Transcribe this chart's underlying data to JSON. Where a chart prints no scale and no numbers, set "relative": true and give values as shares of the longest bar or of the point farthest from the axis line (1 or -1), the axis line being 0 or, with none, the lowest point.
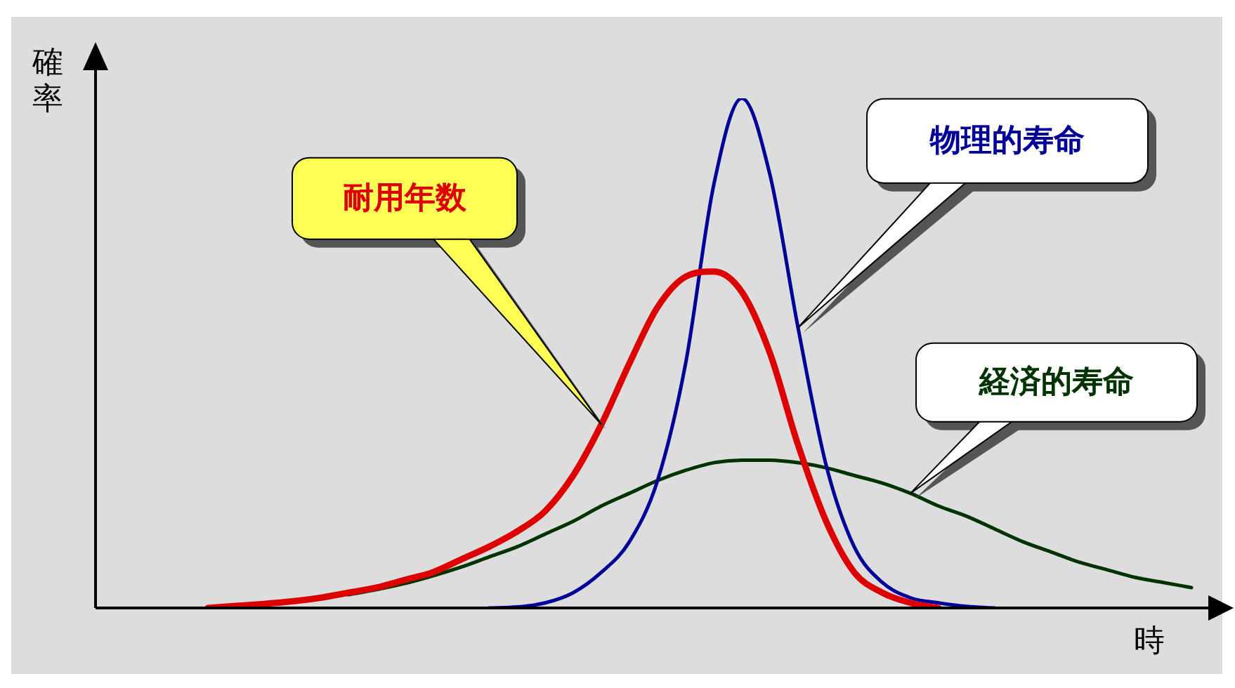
{
  "chart_data": {
    "type": "line",
    "relative": true,
    "xlabel": "時",
    "ylabel": "確率",
    "legend": false,
    "grid": false,
    "marker": "none",
    "line_style": "solid",
    "categories": [
      null,
      null,
      null,
      null,
      null,
      null,
      null,
      null,
      null,
      null,
      null,
      null,
      null,
      null,
      null,
      null,
      null,
      null,
      null,
      null,
      null,
      null,
      null,
      null,
      null,
      null,
      null,
      null,
      null,
      null,
      null,
      null,
      null,
      null,
      null,
      null,
      null,
      null,
      null,
      null,
      null
    ],
    "series": [
      {
        "name": "耐用年数",
        "color": "#dd0000",
        "values": [
          null,
          null,
          null,
          null,
          0,
          0.004,
          0.008,
          0.013,
          0.02,
          0.03,
          0.04,
          0.055,
          0.07,
          0.095,
          0.12,
          0.15,
          0.19,
          0.26,
          0.36,
          0.48,
          0.59,
          0.65,
          0.66,
          0.62,
          0.5,
          0.32,
          0.17,
          0.07,
          0.03,
          0.01,
          0,
          null,
          null,
          null,
          null,
          null,
          null,
          null,
          null,
          null,
          null
        ]
      },
      {
        "name": "物理的寿命",
        "color": "#000099",
        "values": [
          null,
          null,
          null,
          null,
          null,
          null,
          null,
          null,
          null,
          null,
          null,
          null,
          null,
          null,
          0,
          0.002,
          0.01,
          0.03,
          0.07,
          0.13,
          0.25,
          0.48,
          0.83,
          1,
          0.85,
          0.55,
          0.28,
          0.12,
          0.05,
          0.02,
          0.01,
          0.003,
          0,
          null,
          null,
          null,
          null,
          null,
          null,
          null,
          null
        ]
      },
      {
        "name": "経済的寿命",
        "color": "#003300",
        "values": [
          null,
          null,
          null,
          null,
          null,
          null,
          null,
          null,
          null,
          0.026,
          0.036,
          0.048,
          0.063,
          0.08,
          0.1,
          0.12,
          0.145,
          0.17,
          0.2,
          0.225,
          0.25,
          0.27,
          0.285,
          0.29,
          0.29,
          0.285,
          0.275,
          0.26,
          0.245,
          0.225,
          0.2,
          0.18,
          0.155,
          0.13,
          0.11,
          0.09,
          0.075,
          0.06,
          0.05,
          0.04,
          null
        ]
      }
    ]
  }
}
